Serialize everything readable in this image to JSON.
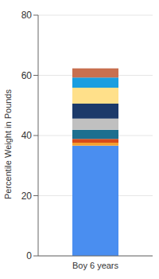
{
  "chart_data": {
    "type": "bar",
    "stacked": true,
    "ylabel": "Percentile Weight in Pounds",
    "categories": [
      "Boy 6 years"
    ],
    "series": [
      {
        "color": "#4a8ef0",
        "values": [
          36.6
        ]
      },
      {
        "color": "#f5a030",
        "values": [
          1.0
        ]
      },
      {
        "color": "#d84a1a",
        "values": [
          1.3
        ]
      },
      {
        "color": "#1c6f8f",
        "values": [
          3.0
        ]
      },
      {
        "color": "#c0c0c0",
        "values": [
          3.7
        ]
      },
      {
        "color": "#1c3a6a",
        "values": [
          5.0
        ]
      },
      {
        "color": "#ffe08a",
        "values": [
          5.3
        ]
      },
      {
        "color": "#1a9ee0",
        "values": [
          3.4
        ]
      },
      {
        "color": "#c87050",
        "values": [
          3.0
        ]
      }
    ],
    "ylim": [
      0,
      80
    ],
    "yticks": [
      0,
      20,
      40,
      60,
      80
    ],
    "grid": true
  }
}
